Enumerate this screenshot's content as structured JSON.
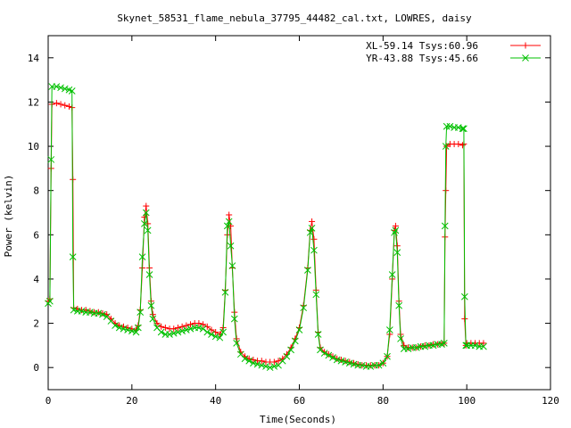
{
  "chart_data": {
    "type": "line",
    "title": "Skynet_58531_flame_nebula_37795_44482_cal.txt, LOWRES, daisy",
    "xlabel": "Time(Seconds)",
    "ylabel": "Power (kelvin)",
    "xlim": [
      0,
      120
    ],
    "ylim": [
      -1,
      15
    ],
    "xticks": [
      0,
      20,
      40,
      60,
      80,
      100,
      120
    ],
    "yticks": [
      0,
      2,
      4,
      6,
      8,
      10,
      12,
      14
    ],
    "grid": false,
    "legend_position": "top-right",
    "series": [
      {
        "name": "XL-59.14 Tsys:60.96",
        "color": "#ff0000",
        "marker": "plus",
        "points": [
          [
            0.0,
            3.0
          ],
          [
            0.4,
            3.1
          ],
          [
            0.7,
            9.0
          ],
          [
            0.9,
            11.9
          ],
          [
            2,
            11.95
          ],
          [
            3,
            11.9
          ],
          [
            4,
            11.85
          ],
          [
            5,
            11.8
          ],
          [
            5.7,
            11.75
          ],
          [
            5.9,
            8.5
          ],
          [
            6.1,
            2.7
          ],
          [
            7,
            2.65
          ],
          [
            8,
            2.6
          ],
          [
            9,
            2.6
          ],
          [
            10,
            2.55
          ],
          [
            11,
            2.5
          ],
          [
            12,
            2.5
          ],
          [
            13,
            2.45
          ],
          [
            14,
            2.4
          ],
          [
            15,
            2.2
          ],
          [
            16,
            2.0
          ],
          [
            17,
            1.9
          ],
          [
            18,
            1.85
          ],
          [
            19,
            1.8
          ],
          [
            20,
            1.75
          ],
          [
            21,
            1.7
          ],
          [
            21.5,
            1.9
          ],
          [
            22,
            2.6
          ],
          [
            22.5,
            4.5
          ],
          [
            23,
            6.8
          ],
          [
            23.4,
            7.3
          ],
          [
            23.8,
            6.5
          ],
          [
            24.2,
            4.5
          ],
          [
            24.6,
            3.0
          ],
          [
            25,
            2.4
          ],
          [
            26,
            2.0
          ],
          [
            27,
            1.85
          ],
          [
            28,
            1.8
          ],
          [
            29,
            1.75
          ],
          [
            30,
            1.75
          ],
          [
            31,
            1.8
          ],
          [
            32,
            1.85
          ],
          [
            33,
            1.9
          ],
          [
            34,
            1.95
          ],
          [
            35,
            2.0
          ],
          [
            36,
            2.0
          ],
          [
            37,
            1.95
          ],
          [
            38,
            1.85
          ],
          [
            39,
            1.7
          ],
          [
            40,
            1.6
          ],
          [
            41,
            1.5
          ],
          [
            41.8,
            1.8
          ],
          [
            42.3,
            3.5
          ],
          [
            42.8,
            6.0
          ],
          [
            43.2,
            6.9
          ],
          [
            43.6,
            6.4
          ],
          [
            44,
            4.5
          ],
          [
            44.5,
            2.5
          ],
          [
            45,
            1.3
          ],
          [
            46,
            0.7
          ],
          [
            47,
            0.5
          ],
          [
            48,
            0.4
          ],
          [
            49,
            0.35
          ],
          [
            50,
            0.3
          ],
          [
            51,
            0.3
          ],
          [
            52,
            0.25
          ],
          [
            53,
            0.25
          ],
          [
            54,
            0.25
          ],
          [
            55,
            0.3
          ],
          [
            56,
            0.4
          ],
          [
            57,
            0.6
          ],
          [
            58,
            0.9
          ],
          [
            59,
            1.3
          ],
          [
            60,
            1.8
          ],
          [
            61,
            2.8
          ],
          [
            62,
            4.5
          ],
          [
            62.6,
            6.2
          ],
          [
            63,
            6.6
          ],
          [
            63.5,
            5.8
          ],
          [
            64,
            3.5
          ],
          [
            64.5,
            1.6
          ],
          [
            65,
            0.9
          ],
          [
            66,
            0.7
          ],
          [
            67,
            0.6
          ],
          [
            68,
            0.5
          ],
          [
            69,
            0.4
          ],
          [
            70,
            0.35
          ],
          [
            71,
            0.3
          ],
          [
            72,
            0.25
          ],
          [
            73,
            0.2
          ],
          [
            74,
            0.15
          ],
          [
            75,
            0.1
          ],
          [
            76,
            0.1
          ],
          [
            77,
            0.1
          ],
          [
            78,
            0.1
          ],
          [
            79,
            0.1
          ],
          [
            80,
            0.2
          ],
          [
            81,
            0.5
          ],
          [
            81.6,
            1.5
          ],
          [
            82.2,
            4.0
          ],
          [
            82.7,
            6.2
          ],
          [
            83,
            6.4
          ],
          [
            83.4,
            5.5
          ],
          [
            83.8,
            3.0
          ],
          [
            84.2,
            1.5
          ],
          [
            85,
            1.0
          ],
          [
            86,
            0.9
          ],
          [
            87,
            0.9
          ],
          [
            88,
            0.9
          ],
          [
            89,
            0.95
          ],
          [
            90,
            1.0
          ],
          [
            91,
            1.0
          ],
          [
            92,
            1.05
          ],
          [
            93,
            1.05
          ],
          [
            94,
            1.1
          ],
          [
            94.6,
            1.1
          ],
          [
            94.8,
            5.9
          ],
          [
            95,
            8.0
          ],
          [
            95.2,
            10.0
          ],
          [
            96,
            10.1
          ],
          [
            97,
            10.1
          ],
          [
            98,
            10.1
          ],
          [
            99,
            10.05
          ],
          [
            99.3,
            10.1
          ],
          [
            99.5,
            2.2
          ],
          [
            99.8,
            1.0
          ],
          [
            100,
            1.1
          ],
          [
            101,
            1.1
          ],
          [
            102,
            1.1
          ],
          [
            103,
            1.1
          ],
          [
            104,
            1.1
          ]
        ]
      },
      {
        "name": "YR-43.88 Tsys:45.66",
        "color": "#00c000",
        "marker": "cross",
        "points": [
          [
            0.0,
            2.9
          ],
          [
            0.4,
            3.0
          ],
          [
            0.7,
            9.4
          ],
          [
            0.9,
            12.7
          ],
          [
            2,
            12.7
          ],
          [
            3,
            12.65
          ],
          [
            4,
            12.6
          ],
          [
            5,
            12.55
          ],
          [
            5.7,
            12.5
          ],
          [
            5.9,
            5.0
          ],
          [
            6.1,
            2.6
          ],
          [
            7,
            2.55
          ],
          [
            8,
            2.55
          ],
          [
            9,
            2.5
          ],
          [
            10,
            2.5
          ],
          [
            11,
            2.45
          ],
          [
            12,
            2.45
          ],
          [
            13,
            2.4
          ],
          [
            14,
            2.3
          ],
          [
            15,
            2.1
          ],
          [
            16,
            1.9
          ],
          [
            17,
            1.8
          ],
          [
            18,
            1.75
          ],
          [
            19,
            1.7
          ],
          [
            20,
            1.65
          ],
          [
            21,
            1.6
          ],
          [
            21.5,
            1.8
          ],
          [
            22,
            2.5
          ],
          [
            22.5,
            5.0
          ],
          [
            23,
            6.5
          ],
          [
            23.4,
            7.0
          ],
          [
            23.8,
            6.2
          ],
          [
            24.2,
            4.2
          ],
          [
            24.6,
            2.8
          ],
          [
            25,
            2.2
          ],
          [
            26,
            1.8
          ],
          [
            27,
            1.6
          ],
          [
            28,
            1.5
          ],
          [
            29,
            1.5
          ],
          [
            30,
            1.55
          ],
          [
            31,
            1.6
          ],
          [
            32,
            1.65
          ],
          [
            33,
            1.7
          ],
          [
            34,
            1.75
          ],
          [
            35,
            1.8
          ],
          [
            36,
            1.8
          ],
          [
            37,
            1.75
          ],
          [
            38,
            1.6
          ],
          [
            39,
            1.5
          ],
          [
            40,
            1.4
          ],
          [
            41,
            1.35
          ],
          [
            41.8,
            1.6
          ],
          [
            42.3,
            3.4
          ],
          [
            42.8,
            6.4
          ],
          [
            43.2,
            6.6
          ],
          [
            43.6,
            5.5
          ],
          [
            44,
            4.6
          ],
          [
            44.5,
            2.2
          ],
          [
            45,
            1.1
          ],
          [
            46,
            0.6
          ],
          [
            47,
            0.4
          ],
          [
            48,
            0.3
          ],
          [
            49,
            0.2
          ],
          [
            50,
            0.15
          ],
          [
            51,
            0.1
          ],
          [
            52,
            0.05
          ],
          [
            53,
            0.0
          ],
          [
            54,
            0.05
          ],
          [
            55,
            0.1
          ],
          [
            56,
            0.3
          ],
          [
            57,
            0.5
          ],
          [
            58,
            0.8
          ],
          [
            59,
            1.2
          ],
          [
            60,
            1.7
          ],
          [
            61,
            2.7
          ],
          [
            62,
            4.4
          ],
          [
            62.6,
            6.1
          ],
          [
            63,
            6.3
          ],
          [
            63.5,
            5.3
          ],
          [
            64,
            3.3
          ],
          [
            64.5,
            1.5
          ],
          [
            65,
            0.8
          ],
          [
            66,
            0.65
          ],
          [
            67,
            0.55
          ],
          [
            68,
            0.45
          ],
          [
            69,
            0.35
          ],
          [
            70,
            0.3
          ],
          [
            71,
            0.25
          ],
          [
            72,
            0.2
          ],
          [
            73,
            0.15
          ],
          [
            74,
            0.1
          ],
          [
            75,
            0.1
          ],
          [
            76,
            0.05
          ],
          [
            77,
            0.05
          ],
          [
            78,
            0.1
          ],
          [
            79,
            0.1
          ],
          [
            80,
            0.2
          ],
          [
            81,
            0.5
          ],
          [
            81.6,
            1.7
          ],
          [
            82.2,
            4.2
          ],
          [
            82.7,
            6.1
          ],
          [
            83,
            6.2
          ],
          [
            83.4,
            5.2
          ],
          [
            83.8,
            2.8
          ],
          [
            84.2,
            1.3
          ],
          [
            85,
            0.85
          ],
          [
            86,
            0.85
          ],
          [
            87,
            0.9
          ],
          [
            88,
            0.9
          ],
          [
            89,
            0.95
          ],
          [
            90,
            0.95
          ],
          [
            91,
            1.0
          ],
          [
            92,
            1.0
          ],
          [
            93,
            1.05
          ],
          [
            94,
            1.05
          ],
          [
            94.6,
            1.1
          ],
          [
            94.8,
            6.4
          ],
          [
            95,
            10.0
          ],
          [
            95.2,
            10.9
          ],
          [
            96,
            10.9
          ],
          [
            97,
            10.85
          ],
          [
            98,
            10.85
          ],
          [
            99,
            10.8
          ],
          [
            99.3,
            10.8
          ],
          [
            99.5,
            3.2
          ],
          [
            99.8,
            1.0
          ],
          [
            100,
            1.0
          ],
          [
            101,
            1.0
          ],
          [
            102,
            1.0
          ],
          [
            103,
            0.95
          ],
          [
            104,
            0.95
          ]
        ]
      }
    ]
  }
}
